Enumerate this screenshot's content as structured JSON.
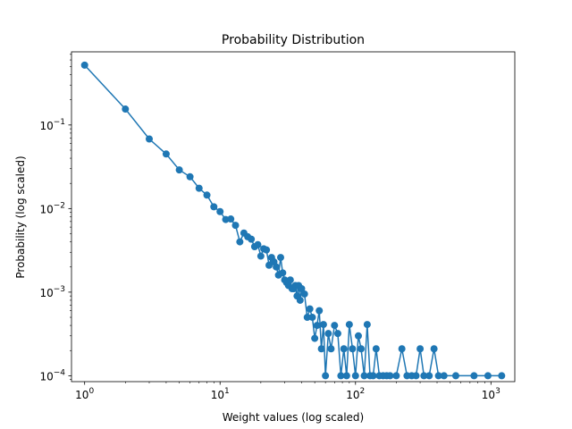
{
  "chart_data": {
    "type": "line",
    "title": "Probability Distribution",
    "xlabel": "Weight values (log scaled)",
    "ylabel": "Probability (log scaled)",
    "xscale": "log",
    "yscale": "log",
    "xlim": [
      0.8,
      1500
    ],
    "ylim": [
      8.5e-05,
      0.75
    ],
    "grid": false,
    "color": "#1f77b4",
    "marker": "circle",
    "x_ticks": [
      {
        "value": 1,
        "base": "10",
        "exp": "0"
      },
      {
        "value": 10,
        "base": "10",
        "exp": "1"
      },
      {
        "value": 100,
        "base": "10",
        "exp": "2"
      },
      {
        "value": 1000,
        "base": "10",
        "exp": "3"
      }
    ],
    "y_ticks": [
      {
        "value": 0.0001,
        "base": "10",
        "exp": "−4"
      },
      {
        "value": 0.001,
        "base": "10",
        "exp": "−3"
      },
      {
        "value": 0.01,
        "base": "10",
        "exp": "−2"
      },
      {
        "value": 0.1,
        "base": "10",
        "exp": "−1"
      }
    ],
    "series": [
      {
        "x": [
          1,
          2,
          3,
          4,
          5,
          6,
          7,
          8,
          9,
          10,
          11,
          12,
          13,
          14,
          15,
          16,
          17,
          18,
          19,
          20,
          21,
          22,
          23,
          24,
          25,
          26,
          27,
          28,
          29,
          30,
          31,
          32,
          33,
          34,
          35,
          36,
          37,
          38,
          39,
          40,
          42,
          44,
          46,
          48,
          50,
          52,
          54,
          56,
          58,
          60,
          63,
          66,
          70,
          74,
          78,
          82,
          86,
          90,
          95,
          100,
          105,
          110,
          116,
          122,
          128,
          135,
          142,
          150,
          160,
          170,
          180,
          200,
          220,
          240,
          260,
          280,
          300,
          320,
          350,
          380,
          410,
          450,
          550,
          750,
          950,
          1200
        ],
        "y": [
          0.52,
          0.155,
          0.068,
          0.045,
          0.029,
          0.024,
          0.0175,
          0.0145,
          0.0105,
          0.0092,
          0.0074,
          0.0075,
          0.0063,
          0.004,
          0.0051,
          0.0046,
          0.0043,
          0.0035,
          0.0037,
          0.0027,
          0.0033,
          0.0032,
          0.0021,
          0.0026,
          0.0023,
          0.002,
          0.0016,
          0.0026,
          0.0017,
          0.0014,
          0.0013,
          0.0012,
          0.0014,
          0.0011,
          0.0011,
          0.0012,
          0.0009,
          0.0012,
          0.0008,
          0.0011,
          0.00095,
          0.0005,
          0.00063,
          0.0005,
          0.00028,
          0.0004,
          0.0006,
          0.00021,
          0.00041,
          0.0001,
          0.00032,
          0.00021,
          0.0004,
          0.00032,
          0.0001,
          0.00021,
          0.0001,
          0.00041,
          0.00021,
          0.0001,
          0.0003,
          0.00021,
          0.0001,
          0.00041,
          0.0001,
          0.0001,
          0.00021,
          0.0001,
          0.0001,
          0.0001,
          0.0001,
          0.0001,
          0.00021,
          0.0001,
          0.0001,
          0.0001,
          0.00021,
          0.0001,
          0.0001,
          0.00021,
          0.0001,
          0.0001,
          0.0001,
          0.0001,
          0.0001,
          0.0001
        ]
      }
    ]
  }
}
